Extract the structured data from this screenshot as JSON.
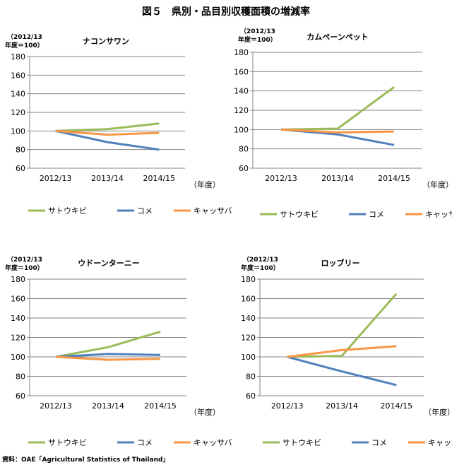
{
  "figure": {
    "title": "図５　県別・品目別収穫面積の増減率",
    "source": "資料：OAE「Agricultural Statistics of Thailand」",
    "unit_line1": "（2012/13",
    "unit_line2": "年度＝100）",
    "x_unit": "（年度）"
  },
  "colors": {
    "サトウキビ": "#9BBB59",
    "コメ": "#4F81BD",
    "キャッサバ": "#F79646",
    "grid": "#868686",
    "axis": "#868686"
  },
  "chart_data": [
    {
      "type": "line",
      "title": "ナコンサワン",
      "categories": [
        "2012/13",
        "2013/14",
        "2014/15"
      ],
      "ylim": [
        60,
        180
      ],
      "yticks": [
        60,
        80,
        100,
        120,
        140,
        160,
        180
      ],
      "grid": true,
      "legend": "bottom",
      "series": [
        {
          "name": "サトウキビ",
          "values": [
            100,
            102,
            108
          ]
        },
        {
          "name": "コメ",
          "values": [
            100,
            88,
            80
          ]
        },
        {
          "name": "キャッサバ",
          "values": [
            100,
            96,
            98
          ]
        }
      ]
    },
    {
      "type": "line",
      "title": "カムペーンペット",
      "categories": [
        "2012/13",
        "2013/14",
        "2014/15"
      ],
      "ylim": [
        60,
        180
      ],
      "yticks": [
        60,
        80,
        100,
        120,
        140,
        160,
        180
      ],
      "grid": true,
      "legend": "bottom",
      "series": [
        {
          "name": "サトウキビ",
          "values": [
            100,
            101,
            144
          ]
        },
        {
          "name": "コメ",
          "values": [
            100,
            95,
            84
          ]
        },
        {
          "name": "キャッサバ",
          "values": [
            100,
            97,
            98
          ]
        }
      ]
    },
    {
      "type": "line",
      "title": "ウドーンターニー",
      "categories": [
        "2012/13",
        "2013/14",
        "2014/15"
      ],
      "ylim": [
        60,
        180
      ],
      "yticks": [
        60,
        80,
        100,
        120,
        140,
        160,
        180
      ],
      "grid": true,
      "legend": "bottom",
      "series": [
        {
          "name": "サトウキビ",
          "values": [
            100,
            110,
            126
          ]
        },
        {
          "name": "コメ",
          "values": [
            100,
            103,
            102
          ]
        },
        {
          "name": "キャッサバ",
          "values": [
            100,
            97,
            98
          ]
        }
      ]
    },
    {
      "type": "line",
      "title": "ロッブリー",
      "categories": [
        "2012/13",
        "2013/14",
        "2014/15"
      ],
      "ylim": [
        60,
        180
      ],
      "yticks": [
        60,
        80,
        100,
        120,
        140,
        160,
        180
      ],
      "grid": true,
      "legend": "bottom",
      "series": [
        {
          "name": "サトウキビ",
          "values": [
            100,
            101,
            165
          ]
        },
        {
          "name": "コメ",
          "values": [
            100,
            85,
            71
          ]
        },
        {
          "name": "キャッサバ",
          "values": [
            100,
            107,
            111
          ]
        }
      ]
    }
  ]
}
